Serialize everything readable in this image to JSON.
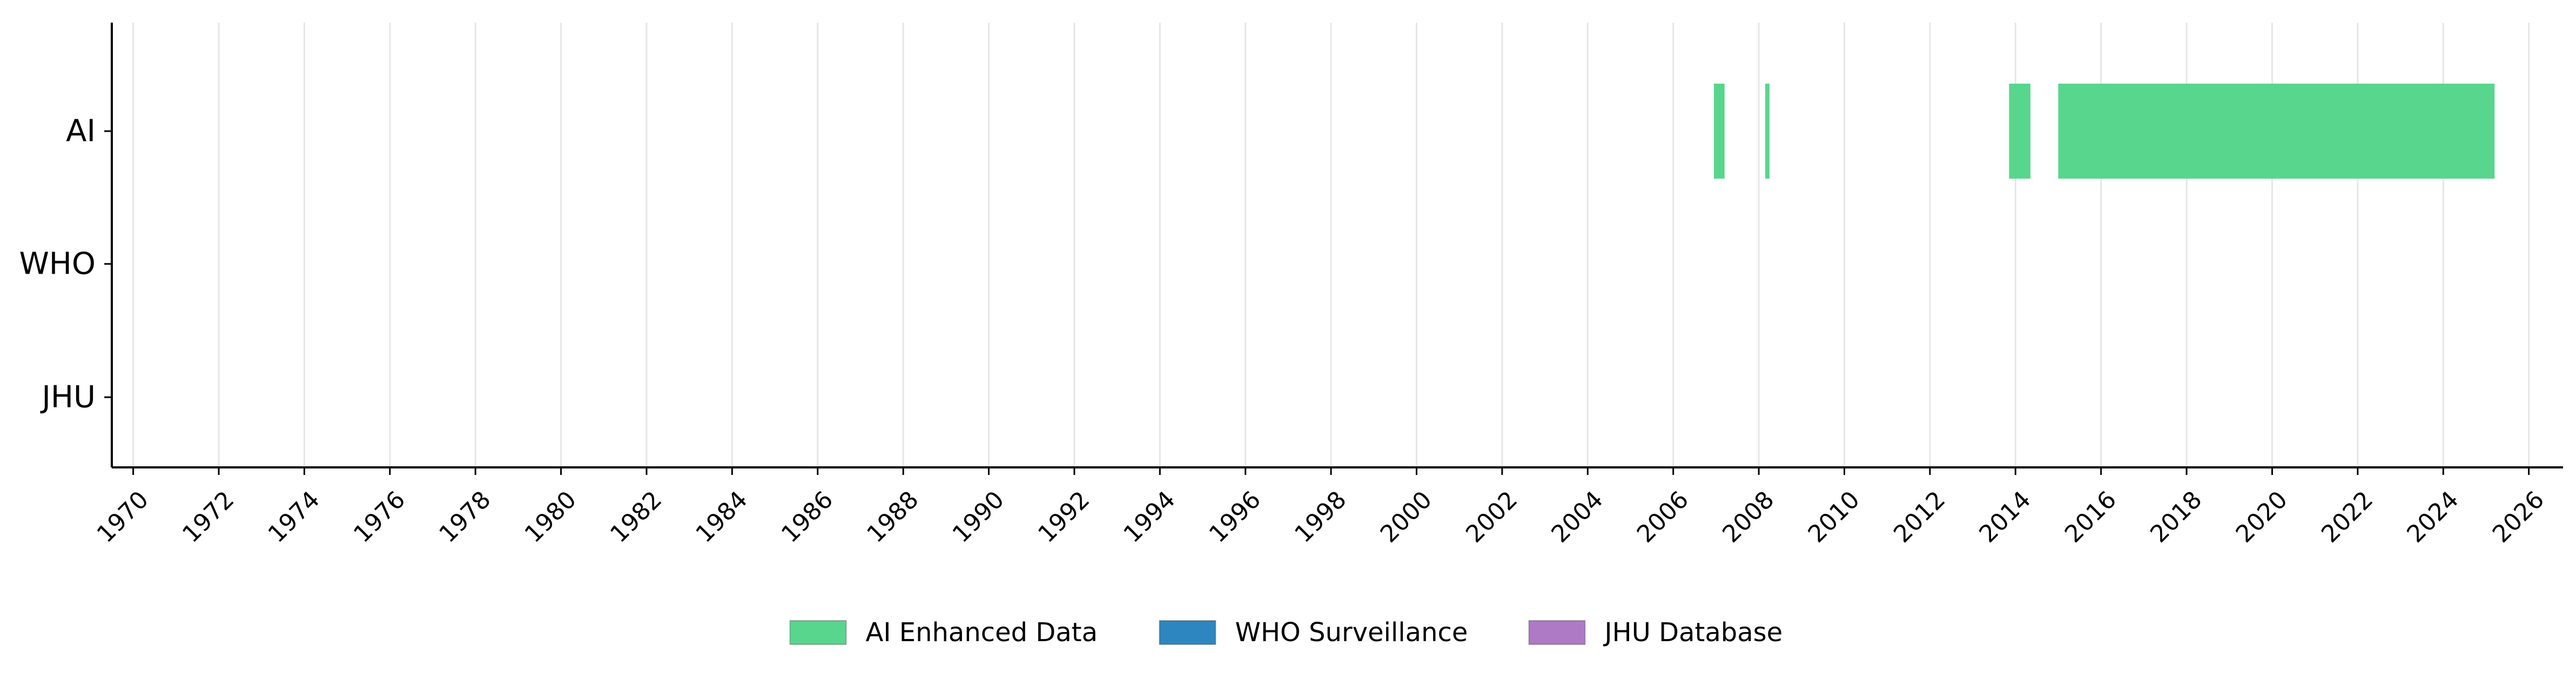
{
  "chart_data": {
    "type": "timeline",
    "title": "",
    "xlabel": "",
    "ylabel": "",
    "xlim": [
      1969.5,
      2026.8
    ],
    "x_ticks": [
      1970,
      1972,
      1974,
      1976,
      1978,
      1980,
      1982,
      1984,
      1986,
      1988,
      1990,
      1992,
      1994,
      1996,
      1998,
      2000,
      2002,
      2004,
      2006,
      2008,
      2010,
      2012,
      2014,
      2016,
      2018,
      2020,
      2022,
      2024,
      2026
    ],
    "grid": "vertical",
    "categories": [
      "AI",
      "WHO",
      "JHU"
    ],
    "series": [
      {
        "name": "AI Enhanced Data",
        "category": "AI",
        "color": "#58d68d",
        "intervals": [
          [
            2006.95,
            2007.2
          ],
          [
            2008.15,
            2008.25
          ],
          [
            2013.85,
            2014.35
          ],
          [
            2015.0,
            2025.2
          ]
        ]
      },
      {
        "name": "WHO Surveillance",
        "category": "WHO",
        "color": "#2e86c1",
        "intervals": []
      },
      {
        "name": "JHU Database",
        "category": "JHU",
        "color": "#af7ac5",
        "intervals": []
      }
    ],
    "legend": {
      "position": "bottom-center",
      "items": [
        "AI Enhanced Data",
        "WHO Surveillance",
        "JHU Database"
      ]
    }
  }
}
